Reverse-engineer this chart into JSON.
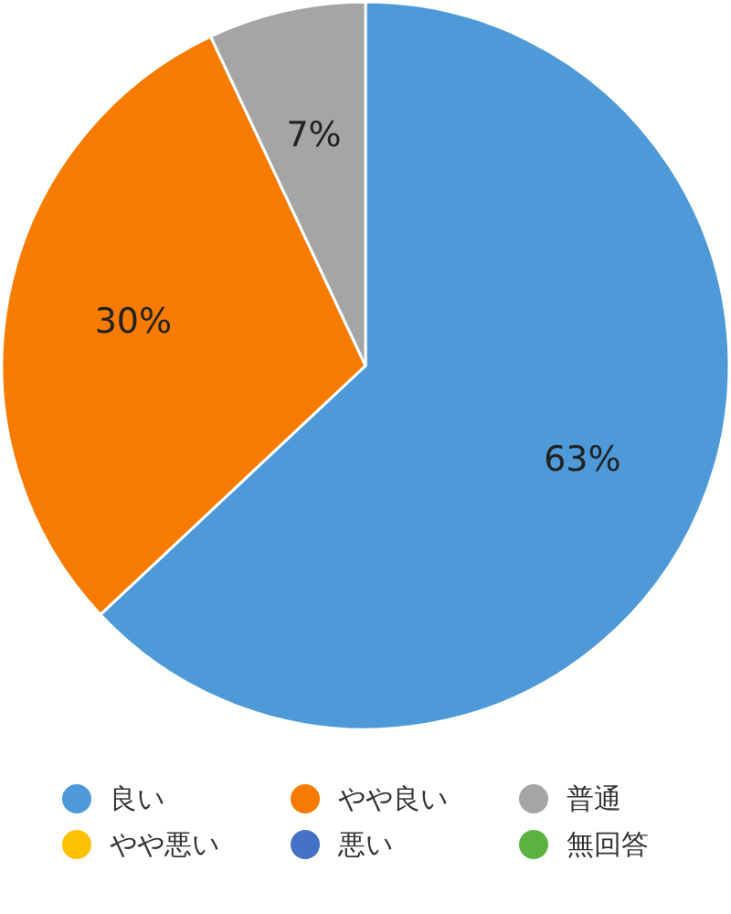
{
  "chart_data": {
    "type": "pie",
    "categories": [
      "良い",
      "やや良い",
      "普通",
      "やや悪い",
      "悪い",
      "無回答"
    ],
    "values": [
      63,
      30,
      7,
      0,
      0,
      0
    ],
    "colors": [
      "#4e9ad9",
      "#f77b00",
      "#a5a5a5",
      "#ffc000",
      "#4472c4",
      "#5bb33f"
    ],
    "value_labels": [
      "63%",
      "30%",
      "7%",
      null,
      null,
      null
    ],
    "legend": "bottom"
  }
}
